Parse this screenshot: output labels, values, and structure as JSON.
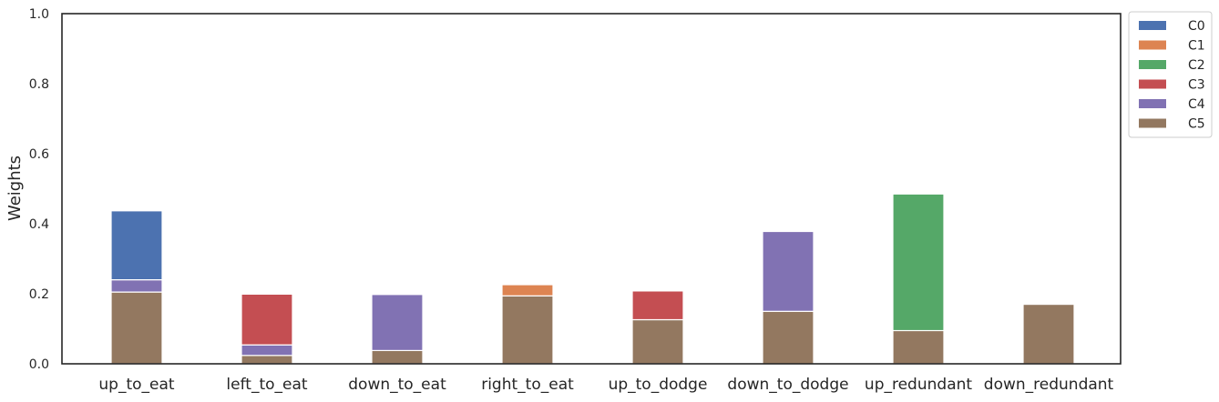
{
  "chart_data": {
    "type": "bar",
    "stacked": true,
    "title": "",
    "xlabel": "",
    "ylabel": "Weights",
    "ylim": [
      0,
      1
    ],
    "yticks": [
      "0.0",
      "0.2",
      "0.4",
      "0.6",
      "0.8",
      "1.0"
    ],
    "grid": false,
    "legend_position": "outside-top-right",
    "categories": [
      "up_to_eat",
      "left_to_eat",
      "down_to_eat",
      "right_to_eat",
      "up_to_dodge",
      "down_to_dodge",
      "up_redundant",
      "down_redundant"
    ],
    "series": [
      {
        "name": "C0",
        "color": "#4c72b0",
        "values": [
          0.197,
          0,
          0,
          0,
          0,
          0,
          0,
          0
        ]
      },
      {
        "name": "C1",
        "color": "#dd8452",
        "values": [
          0,
          0,
          0,
          0.032,
          0,
          0,
          0,
          0
        ]
      },
      {
        "name": "C2",
        "color": "#55a868",
        "values": [
          0,
          0,
          0,
          0,
          0,
          0,
          0.39,
          0
        ]
      },
      {
        "name": "C3",
        "color": "#c44e52",
        "values": [
          0,
          0.145,
          0,
          0,
          0.082,
          0,
          0,
          0
        ]
      },
      {
        "name": "C4",
        "color": "#8172b3",
        "values": [
          0.035,
          0.03,
          0.16,
          0,
          0,
          0.228,
          0,
          0
        ]
      },
      {
        "name": "C5",
        "color": "#937860",
        "values": [
          0.205,
          0.024,
          0.038,
          0.194,
          0.126,
          0.15,
          0.095,
          0.17
        ]
      }
    ]
  }
}
